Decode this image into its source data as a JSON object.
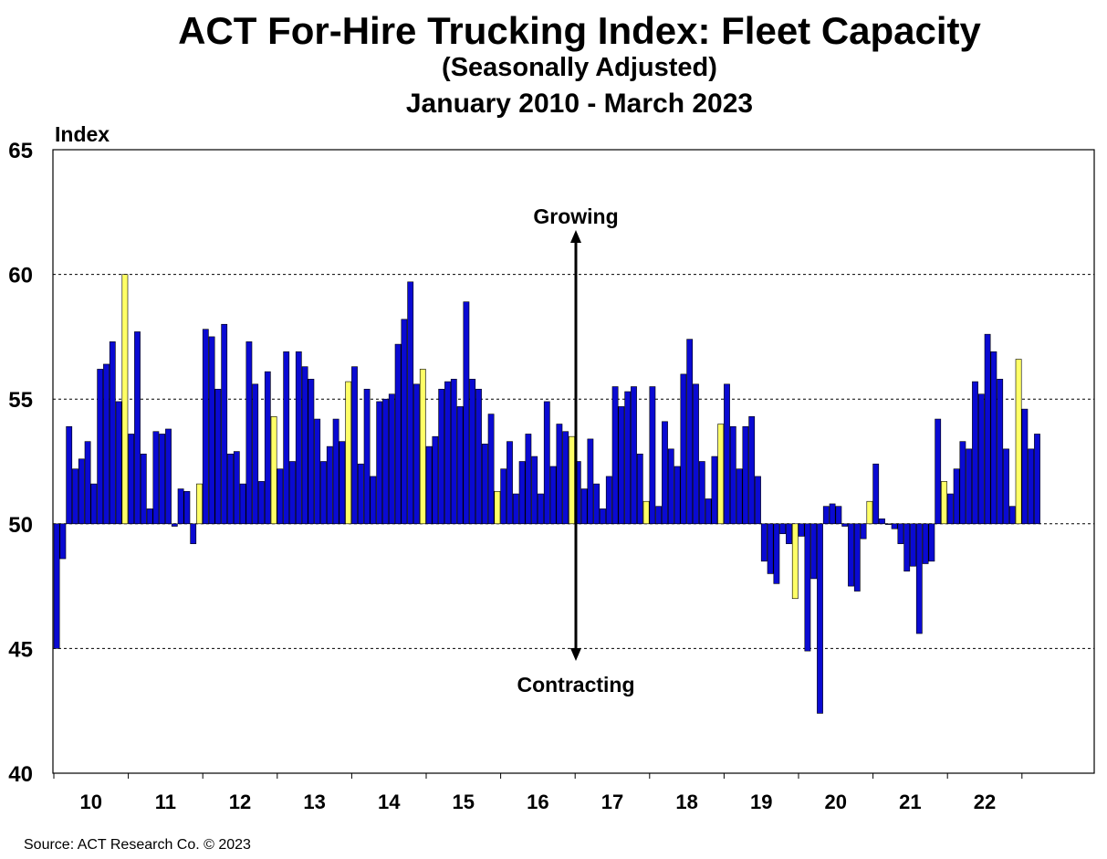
{
  "chart_data": {
    "type": "bar",
    "title": "ACT For-Hire Trucking Index: Fleet Capacity",
    "subtitle": "(Seasonally Adjusted)",
    "date_range": "January 2010 - March 2023",
    "ylabel": "Index",
    "ylim": [
      40,
      65
    ],
    "baseline": 50,
    "y_ticks": [
      40,
      45,
      50,
      55,
      60,
      65
    ],
    "x_tick_labels": [
      "10",
      "11",
      "12",
      "13",
      "14",
      "15",
      "16",
      "17",
      "18",
      "19",
      "20",
      "21",
      "22"
    ],
    "x_start": "January 2010",
    "x_end": "March 2023",
    "gridlines": "horizontal, dashed",
    "highlight_rule": "December of each year shown in yellow",
    "colors": {
      "bar": "#0a0ad2",
      "bar_highlight": "#ffff66",
      "bar_border": "#000000",
      "grid": "#000000"
    },
    "annotations": [
      {
        "text": "Growing",
        "position": "above arrow"
      },
      {
        "text": "Contracting",
        "position": "below arrow"
      }
    ],
    "values": [
      45.0,
      48.6,
      53.9,
      52.2,
      52.6,
      53.3,
      51.6,
      56.2,
      56.4,
      57.3,
      54.9,
      60.0,
      53.6,
      57.7,
      52.8,
      50.6,
      53.7,
      53.6,
      53.8,
      49.9,
      51.4,
      51.3,
      49.2,
      51.6,
      57.8,
      57.5,
      55.4,
      58.0,
      52.8,
      52.9,
      51.6,
      57.3,
      55.6,
      51.7,
      56.1,
      54.3,
      52.2,
      56.9,
      52.5,
      56.9,
      56.3,
      55.8,
      54.2,
      52.5,
      53.1,
      54.2,
      53.3,
      55.7,
      56.3,
      52.4,
      55.4,
      51.9,
      54.9,
      55.0,
      55.2,
      57.2,
      58.2,
      59.7,
      55.6,
      56.2,
      53.1,
      53.5,
      55.4,
      55.7,
      55.8,
      54.7,
      58.9,
      55.8,
      55.4,
      53.2,
      54.4,
      51.3,
      52.2,
      53.3,
      51.2,
      52.5,
      53.6,
      52.7,
      51.2,
      54.9,
      52.3,
      54.0,
      53.7,
      53.5,
      52.5,
      51.4,
      53.4,
      51.6,
      50.6,
      51.9,
      55.5,
      54.7,
      55.3,
      55.5,
      52.8,
      50.9,
      55.5,
      50.7,
      54.1,
      53.0,
      52.3,
      56.0,
      57.4,
      55.6,
      52.5,
      51.0,
      52.7,
      54.0,
      55.6,
      53.9,
      52.2,
      53.9,
      54.3,
      51.9,
      48.5,
      48.0,
      47.6,
      49.6,
      49.2,
      47.0,
      49.5,
      44.9,
      47.8,
      42.4,
      50.7,
      50.8,
      50.7,
      49.9,
      47.5,
      47.3,
      49.4,
      50.9,
      52.4,
      50.2,
      50.0,
      49.8,
      49.2,
      48.1,
      48.3,
      45.6,
      48.4,
      48.5,
      54.2,
      51.7,
      51.2,
      52.2,
      53.3,
      53.0,
      55.7,
      55.2,
      57.6,
      56.9,
      55.8,
      53.0,
      50.7,
      56.6,
      54.6,
      53.0,
      53.6
    ]
  },
  "source": "Source:  ACT Research  Co. © 2023"
}
